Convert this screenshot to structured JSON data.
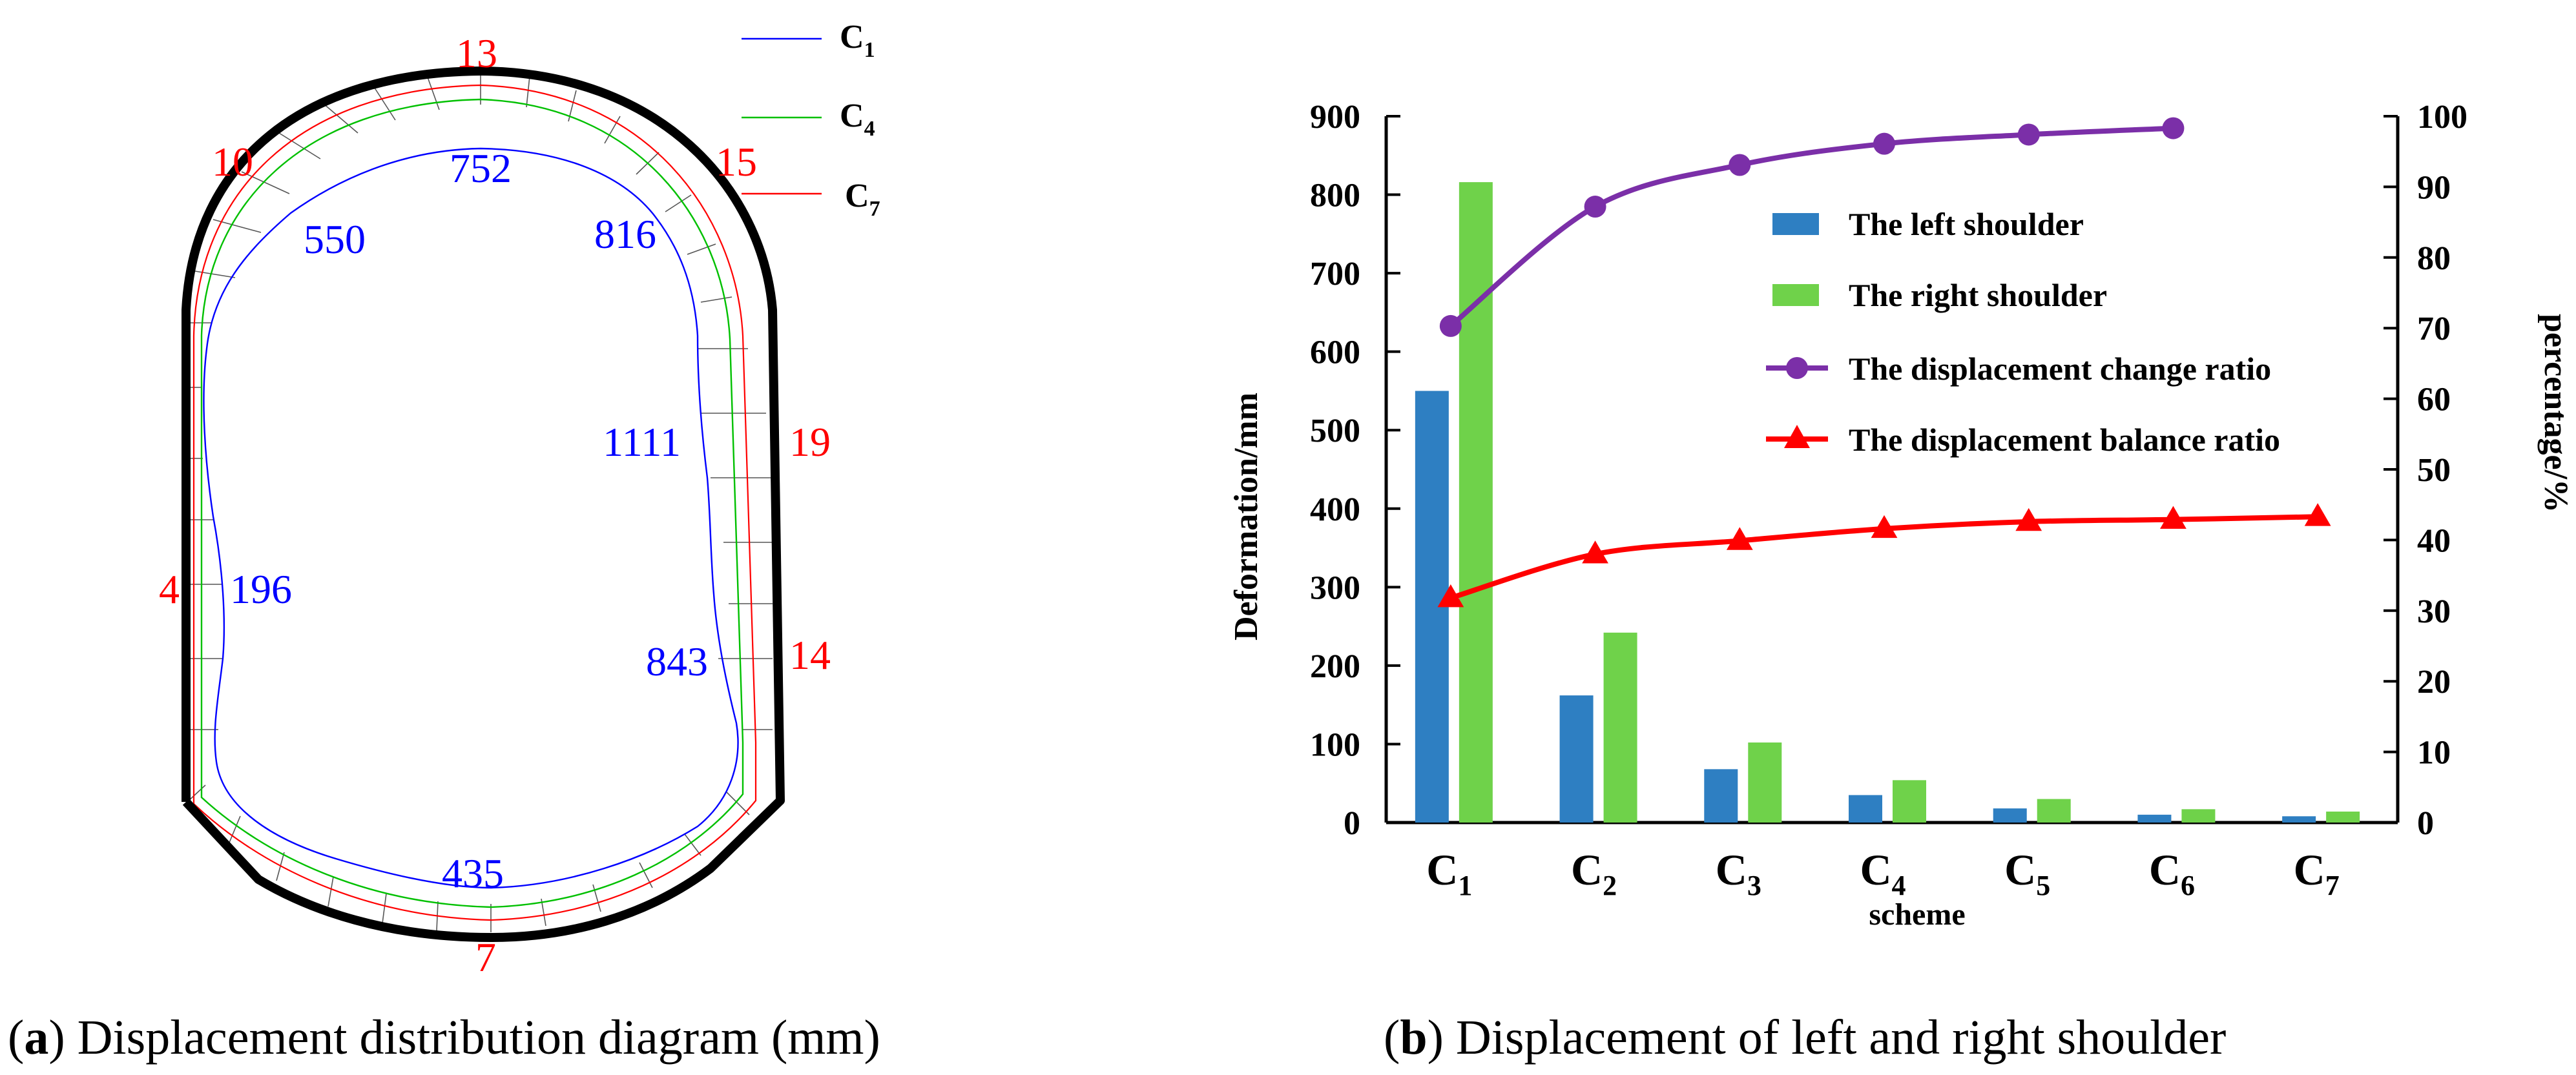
{
  "colors": {
    "profile_outline": "#000000",
    "c1_curve": "#0000ff",
    "c4_curve": "#00cc00",
    "c7_curve": "#ff0000",
    "left_shoulder_bar": "#2e7fc2",
    "right_shoulder_bar": "#6fd24a",
    "change_ratio_line": "#7b2fa8",
    "balance_ratio_line": "#ff0000",
    "red_label": "#ff0000",
    "blue_label": "#0000ff"
  },
  "panel_a": {
    "caption_letter": "a",
    "caption_text": " Displacement distribution diagram (mm)",
    "legend": [
      {
        "base": "C",
        "sub": "1",
        "color_key": "c1_curve"
      },
      {
        "base": "C",
        "sub": "4",
        "color_key": "c4_curve"
      },
      {
        "base": "C",
        "sub": "7",
        "color_key": "c7_curve"
      }
    ],
    "red_values": [
      "13",
      "10",
      "15",
      "19",
      "4",
      "14",
      "7"
    ],
    "blue_values": [
      "752",
      "550",
      "816",
      "1111",
      "196",
      "843",
      "435"
    ]
  },
  "chart_data": {
    "type": "bar",
    "caption_letter": "b",
    "caption_text": " Displacement of left and right shoulder",
    "xlabel": "scheme",
    "ylabel": "Deformation/mm",
    "ylabel_right": "percentage/%",
    "ylim": [
      0,
      900
    ],
    "ylim_right": [
      0,
      100
    ],
    "yticks": [
      0,
      100,
      200,
      300,
      400,
      500,
      600,
      700,
      800,
      900
    ],
    "yticks_right": [
      0,
      10,
      20,
      30,
      40,
      50,
      60,
      70,
      80,
      90,
      100
    ],
    "categories": [
      {
        "base": "C",
        "sub": "1"
      },
      {
        "base": "C",
        "sub": "2"
      },
      {
        "base": "C",
        "sub": "3"
      },
      {
        "base": "C",
        "sub": "4"
      },
      {
        "base": "C",
        "sub": "5"
      },
      {
        "base": "C",
        "sub": "6"
      },
      {
        "base": "C",
        "sub": "7"
      }
    ],
    "series": [
      {
        "name": "The left shoulder",
        "type": "bar",
        "axis": "left",
        "color_key": "left_shoulder_bar",
        "values": [
          550,
          162,
          68,
          35,
          18,
          10,
          8
        ]
      },
      {
        "name": "The right shoulder",
        "type": "bar",
        "axis": "left",
        "color_key": "right_shoulder_bar",
        "values": [
          816,
          242,
          102,
          54,
          30,
          17,
          14
        ]
      },
      {
        "name": "The displacement change ratio",
        "type": "line",
        "axis": "right",
        "marker": "circle",
        "color_key": "change_ratio_line",
        "values": [
          70.3,
          87.2,
          93.1,
          96.1,
          97.4,
          98.3,
          null
        ]
      },
      {
        "name": "The displacement balance ratio",
        "type": "line",
        "axis": "right",
        "marker": "triangle",
        "color_key": "balance_ratio_line",
        "values": [
          31.8,
          38.0,
          39.9,
          41.6,
          42.6,
          42.9,
          43.3
        ]
      }
    ]
  }
}
